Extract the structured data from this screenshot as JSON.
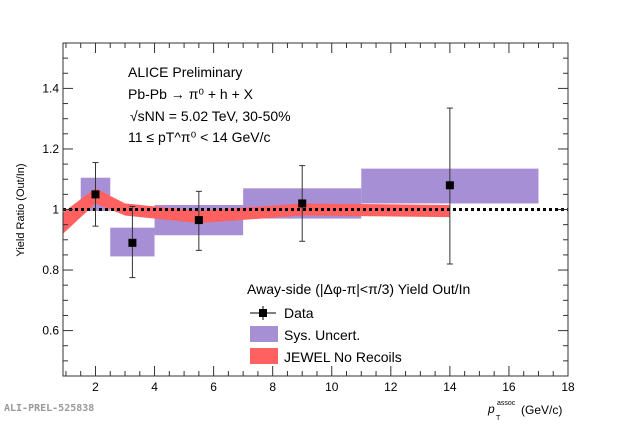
{
  "chart_data": {
    "type": "scatter",
    "xlabel": "p_T^assoc (GeV/c)",
    "xlabel_main": "p",
    "xlabel_sub": "T",
    "xlabel_sup": "assoc",
    "xlabel_unit": "(GeV/c)",
    "ylabel": "Yield Ratio (Out/In)",
    "xlim": [
      0.9,
      18
    ],
    "ylim": [
      0.45,
      1.55
    ],
    "xticks": [
      2,
      4,
      6,
      8,
      10,
      12,
      14,
      16,
      18
    ],
    "yticks": [
      0.6,
      0.8,
      1,
      1.2,
      1.4
    ],
    "ytick_labels": [
      "0.6",
      "0.8",
      "1",
      "1.2",
      "1.4"
    ],
    "grid": false,
    "reference_line": 1,
    "annotations": [
      "ALICE Preliminary",
      "Pb-Pb → π⁰ + h + X",
      "√sNN = 5.02 TeV, 30-50%",
      "11 ≤ pT^π⁰ < 14 GeV/c"
    ],
    "legend": {
      "title": "Away-side (|Δφ-π|<π/3) Yield Out/In",
      "placement": "bottom-right",
      "entries": [
        "Data",
        "Sys. Uncert.",
        "JEWEL No Recoils"
      ]
    },
    "series": [
      {
        "name": "Data",
        "color": "#000000",
        "points": [
          {
            "x": 2,
            "y": 1.05,
            "ylo": 0.945,
            "yhi": 1.155
          },
          {
            "x": 3.25,
            "y": 0.89,
            "ylo": 0.775,
            "yhi": 1.01
          },
          {
            "x": 5.5,
            "y": 0.965,
            "ylo": 0.865,
            "yhi": 1.06
          },
          {
            "x": 9,
            "y": 1.02,
            "ylo": 0.895,
            "yhi": 1.145
          },
          {
            "x": 14,
            "y": 1.08,
            "ylo": 0.82,
            "yhi": 1.335
          }
        ]
      },
      {
        "name": "Sys. Uncert.",
        "color": "#a78fd6",
        "boxes": [
          {
            "x0": 1.5,
            "x1": 2.5,
            "ylo": 0.995,
            "yhi": 1.105
          },
          {
            "x0": 2.5,
            "x1": 4,
            "ylo": 0.845,
            "yhi": 0.94
          },
          {
            "x0": 4,
            "x1": 7,
            "ylo": 0.915,
            "yhi": 1.015
          },
          {
            "x0": 7,
            "x1": 11,
            "ylo": 0.97,
            "yhi": 1.07
          },
          {
            "x0": 11,
            "x1": 17,
            "ylo": 1.02,
            "yhi": 1.135
          }
        ]
      },
      {
        "name": "JEWEL No Recoils",
        "color": "#ff6060",
        "band": [
          {
            "x": 0.9,
            "ylo": 0.92,
            "yhi": 0.99
          },
          {
            "x": 2,
            "ylo": 1.02,
            "yhi": 1.07
          },
          {
            "x": 3,
            "ylo": 0.98,
            "yhi": 1.02
          },
          {
            "x": 5.5,
            "ylo": 0.955,
            "yhi": 0.995
          },
          {
            "x": 9,
            "ylo": 0.98,
            "yhi": 1.02
          },
          {
            "x": 14,
            "ylo": 0.975,
            "yhi": 1.015
          }
        ]
      }
    ]
  },
  "watermark": "ALI-PREL-525838"
}
